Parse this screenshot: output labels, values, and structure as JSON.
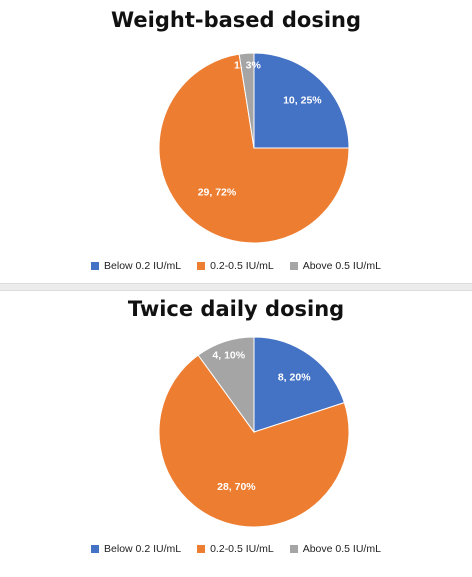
{
  "chart_data": [
    {
      "type": "pie",
      "title": "Weight-based dosing",
      "categories": [
        "Below 0.2 IU/mL",
        "0.2-0.5 IU/mL",
        "Above 0.5 IU/mL"
      ],
      "values": [
        10,
        29,
        1
      ],
      "percents": [
        "25%",
        "72%",
        "3%"
      ],
      "data_labels": [
        "10, 25%",
        "29, 72%",
        "1, 3%"
      ],
      "colors": [
        "#4472c4",
        "#ed7d31",
        "#a5a5a5"
      ],
      "legend": "bottom"
    },
    {
      "type": "pie",
      "title": "Twice daily dosing",
      "categories": [
        "Below 0.2 IU/mL",
        "0.2-0.5 IU/mL",
        "Above 0.5 IU/mL"
      ],
      "values": [
        8,
        28,
        4
      ],
      "percents": [
        "20%",
        "70%",
        "10%"
      ],
      "data_labels": [
        "8, 20%",
        "28, 70%",
        "4, 10%"
      ],
      "colors": [
        "#4472c4",
        "#ed7d31",
        "#a5a5a5"
      ],
      "legend": "bottom"
    }
  ]
}
